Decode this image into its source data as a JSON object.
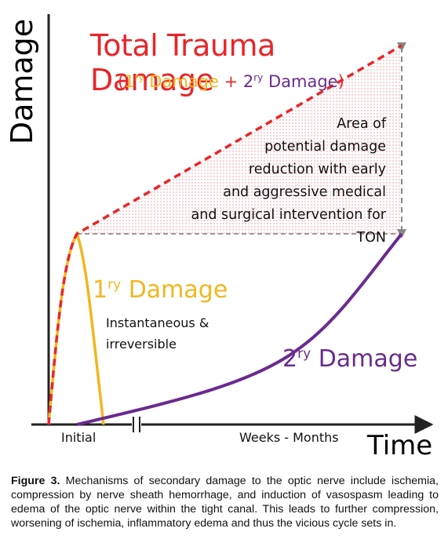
{
  "diagram": {
    "title": "Total Trauma Damage",
    "subtitle": {
      "open": "(",
      "primary_base": "1",
      "primary_sup": "ry",
      "primary_rest": " Damage",
      "plus": " + ",
      "secondary_base": "2",
      "secondary_sup": "ry",
      "secondary_rest": " Damage",
      "close": ")"
    },
    "y_axis_label": "Damage",
    "x_axis_label": "Time",
    "x_ticks": [
      "Initial",
      "Weeks - Months"
    ],
    "area_note": "Area of\npotential damage\nreduction with early\nand aggressive medical\nand surgical intervention for TON",
    "primary_label": {
      "base": "1",
      "sup": "ry",
      "rest": " Damage"
    },
    "primary_note": "Instantaneous &\nirreversible",
    "secondary_label": {
      "base": "2",
      "sup": "ry",
      "rest": " Damage"
    },
    "colors": {
      "total": "#e8262a",
      "primary": "#f2b61f",
      "secondary": "#6a2b8f",
      "axis": "#222222",
      "guide": "#9a9a9a"
    }
  },
  "caption": {
    "label": "Figure 3.",
    "text": " Mechanisms of secondary damage to the optic nerve include ischemia, compression by nerve sheath hemorrhage, and induction of vasospasm leading to edema of the optic nerve within the tight canal. This leads to further compression, worsening of ischemia, inflammatory edema and thus the vicious cycle sets in."
  }
}
